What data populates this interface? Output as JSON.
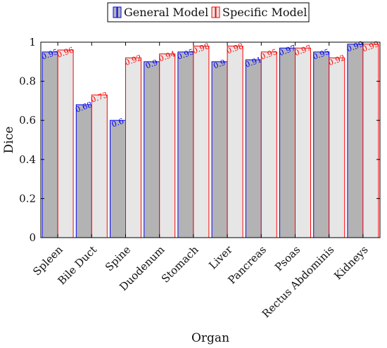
{
  "chart_data": {
    "type": "bar",
    "xlabel": "Organ",
    "ylabel": "Dice",
    "ylim": [
      0,
      1
    ],
    "yticks": [
      0,
      0.2,
      0.4,
      0.6,
      0.8,
      1
    ],
    "ytick_labels": [
      "0",
      "0.2",
      "0.4",
      "0.6",
      "0.8",
      "1"
    ],
    "grid": false,
    "legend_position": "top-center",
    "categories": [
      "Spleen",
      "Bile Duct",
      "Spine",
      "Duodenum",
      "Stomach",
      "Liver",
      "Pancreas",
      "Psoas",
      "Rectus Abdominis",
      "Kidneys"
    ],
    "series": [
      {
        "name": "General Model",
        "values": [
          0.95,
          0.68,
          0.6,
          0.9,
          0.95,
          0.9,
          0.91,
          0.97,
          0.95,
          0.99
        ],
        "labels": [
          "0.95",
          "0.68",
          "0.6",
          "0.9",
          "0.95",
          "0.9",
          "0.91",
          "0.97",
          "0.95",
          "0.99"
        ],
        "fill": "#b3b3b3",
        "stroke": "#0000ff"
      },
      {
        "name": "Specific Model",
        "values": [
          0.96,
          0.73,
          0.92,
          0.94,
          0.98,
          0.98,
          0.95,
          0.97,
          0.92,
          0.99
        ],
        "labels": [
          "0.96",
          "0.73",
          "0.92",
          "0.94",
          "0.98",
          "0.98",
          "0.95",
          "0.97",
          "0.92",
          "0.99"
        ],
        "fill": "#e6e6e6",
        "stroke": "#ff0000"
      }
    ]
  }
}
